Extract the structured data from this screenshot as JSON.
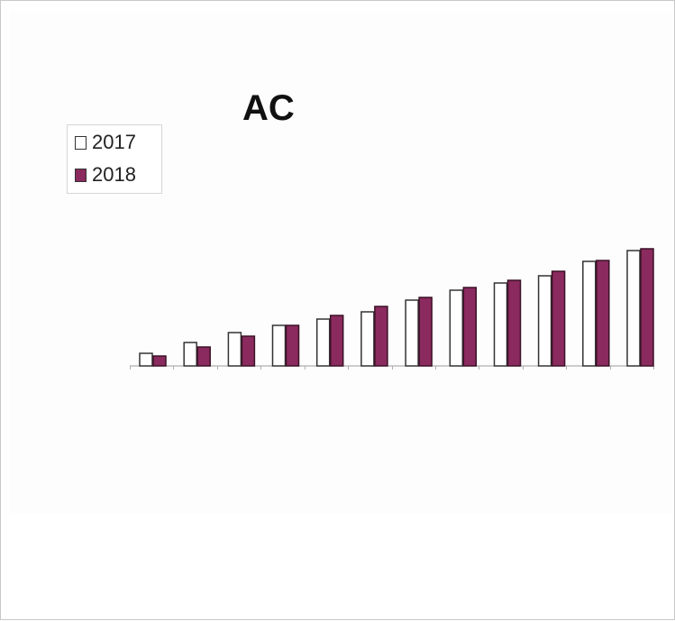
{
  "chart_data": {
    "type": "bar",
    "title": "AC",
    "categories": [
      "",
      "",
      "",
      "",
      "",
      "",
      "",
      "",
      "",
      "",
      "",
      ""
    ],
    "series": [
      {
        "name": "2017",
        "color": "#ffffff",
        "values": [
          14,
          26,
          37,
          45,
          52,
          60,
          73,
          84,
          92,
          100,
          116,
          128
        ]
      },
      {
        "name": "2018",
        "color": "#8b2a5e",
        "values": [
          11,
          21,
          33,
          45,
          56,
          66,
          76,
          87,
          95,
          105,
          117,
          130
        ]
      }
    ],
    "ylim": [
      0,
      160
    ],
    "grid": false,
    "legend": "top-left"
  }
}
